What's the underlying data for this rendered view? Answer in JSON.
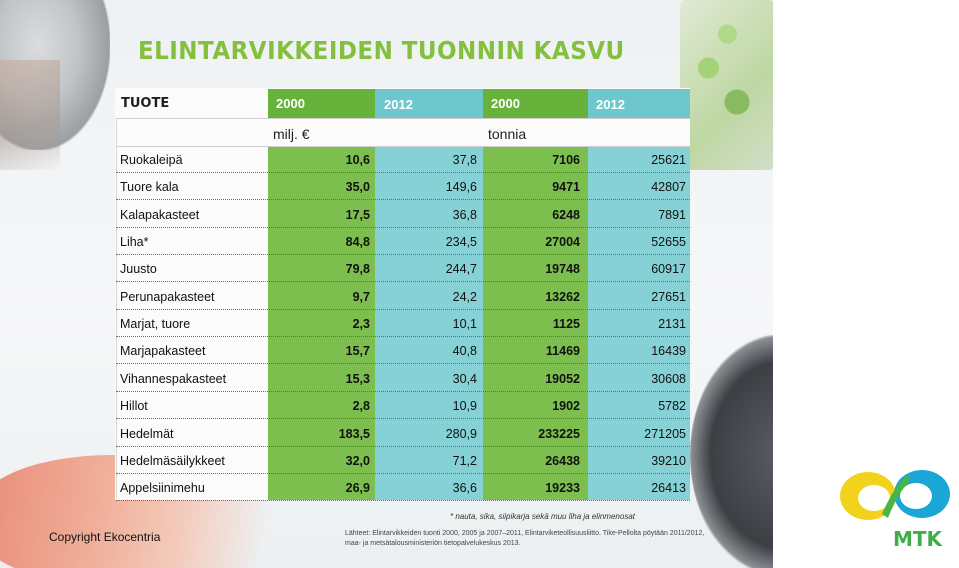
{
  "title": "ELINTARVIKKEIDEN TUONNIN KASVU",
  "chart_data": {
    "type": "table",
    "header_product": "TUOTE",
    "columns": [
      "2000",
      "2012",
      "2000",
      "2012"
    ],
    "units": [
      "milj. €",
      "tonnia"
    ],
    "rows": [
      {
        "name": "Ruokaleipä",
        "eur_2000": "10,6",
        "eur_2012": "37,8",
        "t_2000": "7106",
        "t_2012": "25621"
      },
      {
        "name": "Tuore kala",
        "eur_2000": "35,0",
        "eur_2012": "149,6",
        "t_2000": "9471",
        "t_2012": "42807"
      },
      {
        "name": "Kalapakasteet",
        "eur_2000": "17,5",
        "eur_2012": "36,8",
        "t_2000": "6248",
        "t_2012": "7891"
      },
      {
        "name": "Liha*",
        "eur_2000": "84,8",
        "eur_2012": "234,5",
        "t_2000": "27004",
        "t_2012": "52655"
      },
      {
        "name": "Juusto",
        "eur_2000": "79,8",
        "eur_2012": "244,7",
        "t_2000": "19748",
        "t_2012": "60917"
      },
      {
        "name": "Perunapakasteet",
        "eur_2000": "9,7",
        "eur_2012": "24,2",
        "t_2000": "13262",
        "t_2012": "27651"
      },
      {
        "name": "Marjat, tuore",
        "eur_2000": "2,3",
        "eur_2012": "10,1",
        "t_2000": "1125",
        "t_2012": "2131"
      },
      {
        "name": "Marjapakasteet",
        "eur_2000": "15,7",
        "eur_2012": "40,8",
        "t_2000": "11469",
        "t_2012": "16439"
      },
      {
        "name": "Vihannespakasteet",
        "eur_2000": "15,3",
        "eur_2012": "30,4",
        "t_2000": "19052",
        "t_2012": "30608"
      },
      {
        "name": "Hillot",
        "eur_2000": "2,8",
        "eur_2012": "10,9",
        "t_2000": "1902",
        "t_2012": "5782"
      },
      {
        "name": "Hedelmät",
        "eur_2000": "183,5",
        "eur_2012": "280,9",
        "t_2000": "233225",
        "t_2012": "271205"
      },
      {
        "name": "Hedelmäsäilykkeet",
        "eur_2000": "32,0",
        "eur_2012": "71,2",
        "t_2000": "26438",
        "t_2012": "39210"
      },
      {
        "name": "Appelsiinimehu",
        "eur_2000": "26,9",
        "eur_2012": "36,6",
        "t_2000": "19233",
        "t_2012": "26413"
      }
    ],
    "colors": {
      "col_2000": "#7cbf4f",
      "col_2012": "#86d1d5",
      "title": "#84bf3d"
    }
  },
  "footnote": "* nauta, sika, siipikarja sekä muu liha ja elinmenosat",
  "sources": "Lähteet: Elintarvikkeiden tuonti 2000, 2005 ja 2007–2011, Elintarviketeollisuusliitto. Tike-Pellolta pöytään 2011/2012, maa- ja metsätalousministeriön tietopalvelukeskus 2013.",
  "copyright": "Copyright Ekocentria",
  "logo": {
    "text": "MTK"
  }
}
